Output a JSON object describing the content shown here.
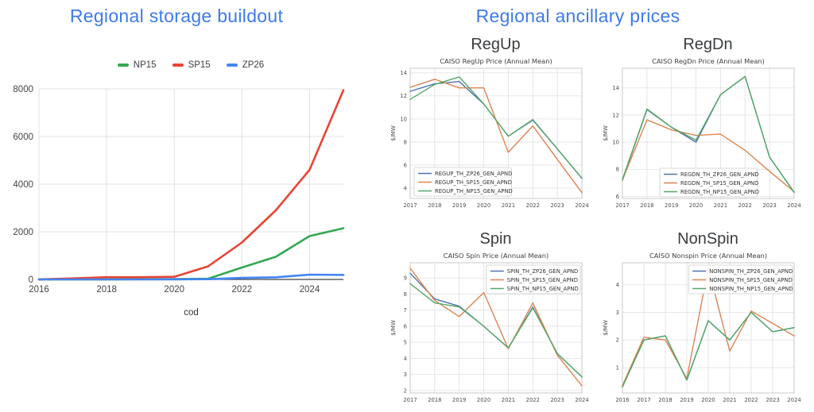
{
  "left_panel": {
    "title": "Regional storage buildout"
  },
  "right_panel": {
    "title": "Regional ancillary prices"
  },
  "accent_color": "#3d7bea",
  "chart_data": [
    {
      "id": "storage_buildout",
      "type": "line",
      "style": "google",
      "xlabel": "cod",
      "x": [
        2016,
        2017,
        2018,
        2019,
        2020,
        2021,
        2022,
        2023,
        2024,
        2025
      ],
      "xticks": [
        2016,
        2018,
        2020,
        2022,
        2024
      ],
      "xlim": [
        2016,
        2025
      ],
      "ylim": [
        0,
        8000
      ],
      "yticks": [
        0,
        2000,
        4000,
        6000,
        8000
      ],
      "grid": true,
      "legend_loc": "top center",
      "series": [
        {
          "name": "NP15",
          "color": "#34a853",
          "values": [
            0,
            0,
            5,
            10,
            15,
            30,
            500,
            950,
            1820,
            2150
          ]
        },
        {
          "name": "SP15",
          "color": "#ea4335",
          "values": [
            5,
            45,
            95,
            95,
            110,
            550,
            1550,
            2900,
            4600,
            7950
          ]
        },
        {
          "name": "ZP26",
          "color": "#4285f4",
          "values": [
            0,
            0,
            0,
            0,
            5,
            10,
            65,
            90,
            200,
            190
          ]
        }
      ]
    },
    {
      "id": "regup",
      "heading": "RegUp",
      "title": "CAISO RegUp Price (Annual Mean)",
      "ylabel": "$/MW",
      "type": "line",
      "style": "matplotlib",
      "x": [
        2017,
        2018,
        2019,
        2020,
        2021,
        2022,
        2023,
        2024
      ],
      "xticks": [
        2017,
        2018,
        2019,
        2020,
        2021,
        2022,
        2023,
        2024
      ],
      "xlim": [
        2017,
        2024
      ],
      "ylim": [
        3.1,
        14.4
      ],
      "yticks": [
        4,
        6,
        8,
        10,
        12,
        14
      ],
      "grid": true,
      "legend_loc": "lower left",
      "series": [
        {
          "name": "REGUP_TH_ZP26_GEN_APND",
          "color": "#4c72b0",
          "values": [
            12.4,
            13.05,
            13.25,
            11.3,
            8.5,
            9.9,
            7.4,
            4.85
          ]
        },
        {
          "name": "REGUP_TH_SP15_GEN_APND",
          "color": "#dd8452",
          "values": [
            12.75,
            13.45,
            12.7,
            12.7,
            7.1,
            9.4,
            6.5,
            3.6
          ]
        },
        {
          "name": "REGUP_TH_NP15_GEN_APND",
          "color": "#55a868",
          "values": [
            11.7,
            13.0,
            13.65,
            11.3,
            8.5,
            9.95,
            7.4,
            4.85
          ]
        }
      ]
    },
    {
      "id": "regdn",
      "heading": "RegDn",
      "title": "CAISO RegDn Price (Annual Mean)",
      "ylabel": "$/MW",
      "type": "line",
      "style": "matplotlib",
      "x": [
        2017,
        2018,
        2019,
        2020,
        2021,
        2022,
        2023,
        2024
      ],
      "xticks": [
        2017,
        2018,
        2019,
        2020,
        2021,
        2022,
        2023,
        2024
      ],
      "xlim": [
        2017,
        2024
      ],
      "ylim": [
        5.85,
        15.45
      ],
      "yticks": [
        6,
        8,
        10,
        12,
        14
      ],
      "grid": true,
      "legend_loc": "lower center",
      "series": [
        {
          "name": "REGDN_TH_ZP26_GEN_APND",
          "color": "#4c72b0",
          "values": [
            7.2,
            12.4,
            11.1,
            10.0,
            13.5,
            14.85,
            8.9,
            6.3
          ]
        },
        {
          "name": "REGDN_TH_SP15_GEN_APND",
          "color": "#dd8452",
          "values": [
            7.2,
            11.65,
            10.9,
            10.5,
            10.6,
            9.4,
            7.85,
            6.35
          ]
        },
        {
          "name": "REGDN_TH_NP15_GEN_APND",
          "color": "#55a868",
          "values": [
            7.25,
            12.45,
            11.1,
            10.15,
            13.5,
            14.85,
            8.9,
            6.3
          ]
        }
      ]
    },
    {
      "id": "spin",
      "heading": "Spin",
      "title": "CAISO Spin Price (Annual Mean)",
      "ylabel": "$/MW",
      "type": "line",
      "style": "matplotlib",
      "x": [
        2017,
        2018,
        2019,
        2020,
        2021,
        2022,
        2023,
        2024
      ],
      "xticks": [
        2017,
        2018,
        2019,
        2020,
        2021,
        2022,
        2023,
        2024
      ],
      "xlim": [
        2017,
        2024
      ],
      "ylim": [
        1.85,
        9.95
      ],
      "yticks": [
        2,
        3,
        4,
        5,
        6,
        7,
        8,
        9
      ],
      "grid": true,
      "legend_loc": "upper right",
      "series": [
        {
          "name": "SPIN_TH_ZP26_GEN_APND",
          "color": "#4c72b0",
          "values": [
            9.3,
            7.7,
            7.25,
            6.0,
            4.65,
            7.2,
            4.3,
            2.85
          ]
        },
        {
          "name": "SPIN_TH_SP15_GEN_APND",
          "color": "#dd8452",
          "values": [
            9.6,
            7.6,
            6.6,
            8.1,
            4.6,
            7.45,
            4.2,
            2.3
          ]
        },
        {
          "name": "SPIN_TH_NP15_GEN_APND",
          "color": "#55a868",
          "values": [
            8.65,
            7.45,
            7.2,
            6.0,
            4.65,
            7.15,
            4.3,
            2.85
          ]
        }
      ]
    },
    {
      "id": "nonspin",
      "heading": "NonSpin",
      "title": "CAISO Nonspin Price (Annual Mean)",
      "ylabel": "$/MW",
      "type": "line",
      "style": "matplotlib",
      "x": [
        2016,
        2017,
        2018,
        2019,
        2020,
        2021,
        2022,
        2023,
        2024
      ],
      "xticks": [
        2016,
        2017,
        2018,
        2019,
        2020,
        2021,
        2022,
        2023,
        2024
      ],
      "xlim": [
        2016,
        2024
      ],
      "ylim": [
        0.08,
        4.8
      ],
      "yticks": [
        1,
        2,
        3,
        4
      ],
      "grid": true,
      "legend_loc": "upper right",
      "series": [
        {
          "name": "NONSPIN_TH_ZP26_GEN_APND",
          "color": "#4c72b0",
          "values": [
            0.3,
            2.0,
            2.15,
            0.55,
            2.7,
            2.0,
            3.0,
            2.3,
            2.45
          ]
        },
        {
          "name": "NONSPIN_TH_SP15_GEN_APND",
          "color": "#dd8452",
          "values": [
            0.35,
            2.1,
            2.0,
            0.6,
            4.6,
            1.6,
            3.05,
            2.6,
            2.15
          ]
        },
        {
          "name": "NONSPIN_TH_NP15_GEN_APND",
          "color": "#55a868",
          "values": [
            0.3,
            2.0,
            2.15,
            0.55,
            2.7,
            2.0,
            3.0,
            2.3,
            2.45
          ]
        }
      ]
    }
  ]
}
